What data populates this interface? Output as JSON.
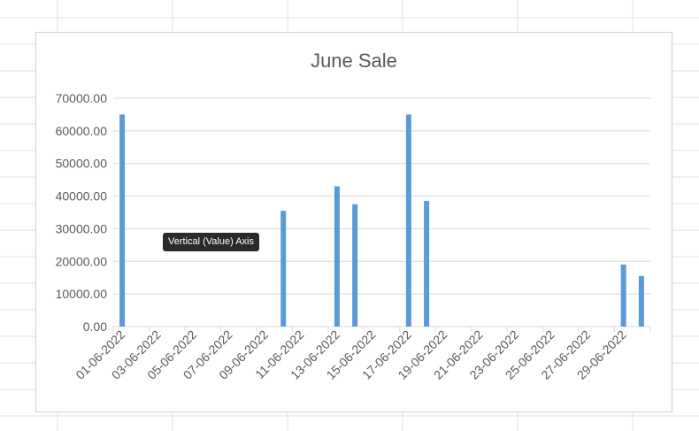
{
  "tooltip": "Vertical (Value) Axis",
  "colors": {
    "bar": "#5b9bd5",
    "grid": "#d9d9d9",
    "axis_text": "#595959"
  },
  "chart_data": {
    "type": "bar",
    "title": "June Sale",
    "xlabel": "",
    "ylabel": "",
    "ylim": [
      0,
      70000
    ],
    "y_ticks": [
      0,
      10000,
      20000,
      30000,
      40000,
      50000,
      60000,
      70000
    ],
    "y_tick_labels": [
      "0.00",
      "10000.00",
      "20000.00",
      "30000.00",
      "40000.00",
      "50000.00",
      "60000.00",
      "70000.00"
    ],
    "grid": true,
    "legend": "none",
    "categories": [
      "01-06-2022",
      "02-06-2022",
      "03-06-2022",
      "04-06-2022",
      "05-06-2022",
      "06-06-2022",
      "07-06-2022",
      "08-06-2022",
      "09-06-2022",
      "10-06-2022",
      "11-06-2022",
      "12-06-2022",
      "13-06-2022",
      "14-06-2022",
      "15-06-2022",
      "16-06-2022",
      "17-06-2022",
      "18-06-2022",
      "19-06-2022",
      "20-06-2022",
      "21-06-2022",
      "22-06-2022",
      "23-06-2022",
      "24-06-2022",
      "25-06-2022",
      "26-06-2022",
      "27-06-2022",
      "28-06-2022",
      "29-06-2022",
      "30-06-2022"
    ],
    "x_tick_labels": [
      "01-06-2022",
      "03-06-2022",
      "05-06-2022",
      "07-06-2022",
      "09-06-2022",
      "11-06-2022",
      "13-06-2022",
      "15-06-2022",
      "17-06-2022",
      "19-06-2022",
      "21-06-2022",
      "23-06-2022",
      "25-06-2022",
      "27-06-2022",
      "29-06-2022"
    ],
    "values": [
      65000,
      0,
      0,
      0,
      0,
      0,
      0,
      0,
      0,
      35500,
      0,
      0,
      43000,
      37500,
      0,
      0,
      65000,
      38500,
      0,
      0,
      0,
      0,
      0,
      0,
      0,
      0,
      0,
      0,
      19000,
      15500
    ]
  }
}
